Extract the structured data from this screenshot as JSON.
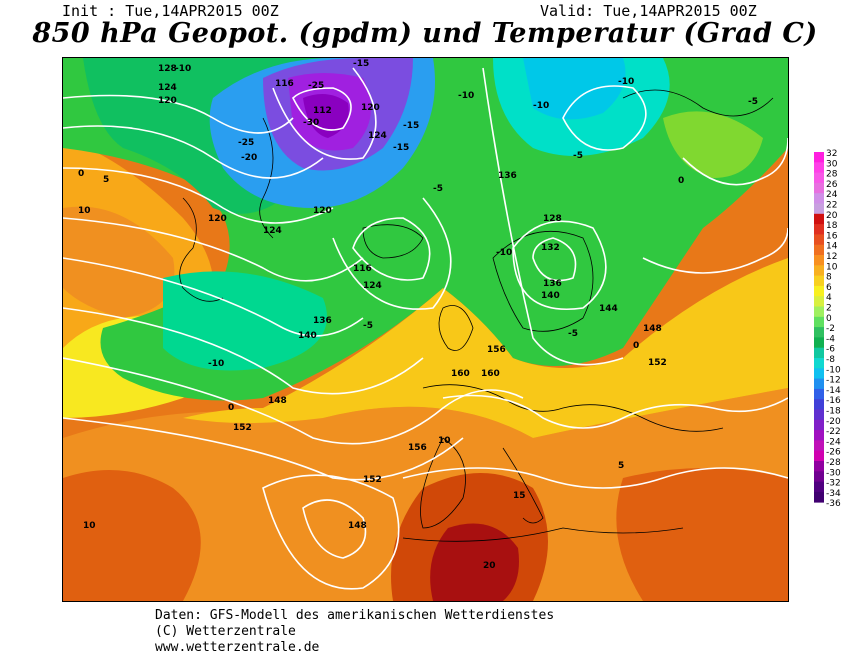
{
  "header": {
    "init": "Init : Tue,14APR2015 00Z",
    "valid": "Valid: Tue,14APR2015 00Z",
    "title": "850 hPa Geopot. (gpdm) und Temperatur (Grad C)"
  },
  "colors": {
    "t_m36": "#5a007a",
    "t_m30": "#8a00c0",
    "t_m24": "#a020e0",
    "t_m20": "#7b4de0",
    "t_m16": "#3a6ee8",
    "t_m12": "#2a9ef0",
    "t_m10": "#00c8e8",
    "t_m8": "#00e0c8",
    "t_m6": "#00d890",
    "t_m4": "#10c060",
    "t_m2": "#30c840",
    "t_0": "#80d830",
    "t_2": "#d8e020",
    "t_4": "#f8e820",
    "t_6": "#f8c818",
    "t_8": "#f8a818",
    "t_10": "#f09020",
    "t_12": "#e87818",
    "t_14": "#e06010",
    "t_16": "#d04808",
    "t_18": "#c03010",
    "t_20": "#a81010",
    "coast": "#000000",
    "contour": "#ffffff"
  },
  "geopotential_labels": [
    "128",
    "124",
    "120",
    "116",
    "112",
    "120",
    "124",
    "136",
    "128",
    "132",
    "136",
    "140",
    "144",
    "148",
    "152",
    "156",
    "160",
    "120",
    "116",
    "124",
    "120",
    "124",
    "136",
    "140",
    "148",
    "152",
    "156",
    "152",
    "148",
    "160"
  ],
  "temperature_labels": [
    "-10",
    "-15",
    "-25",
    "-30",
    "-25",
    "-20",
    "-15",
    "-10",
    "-5",
    "0",
    "5",
    "10",
    "-10",
    "-5",
    "-10",
    "0",
    "-5",
    "-10",
    "-5",
    "0",
    "5",
    "10",
    "15",
    "20",
    "10",
    "-5",
    "0",
    "-10",
    "-15"
  ],
  "scale": {
    "ticks": [
      "32",
      "30",
      "28",
      "26",
      "24",
      "22",
      "20",
      "18",
      "16",
      "14",
      "12",
      "10",
      "8",
      "6",
      "4",
      "2",
      "0",
      "-2",
      "-4",
      "-6",
      "-8",
      "-10",
      "-12",
      "-14",
      "-16",
      "-18",
      "-20",
      "-22",
      "-24",
      "-26",
      "-28",
      "-30",
      "-32",
      "-34",
      "-36"
    ]
  },
  "footer": {
    "line1": "Daten: GFS-Modell des amerikanischen Wetterdienstes",
    "line2": "(C) Wetterzentrale",
    "line3": "www.wetterzentrale.de"
  }
}
